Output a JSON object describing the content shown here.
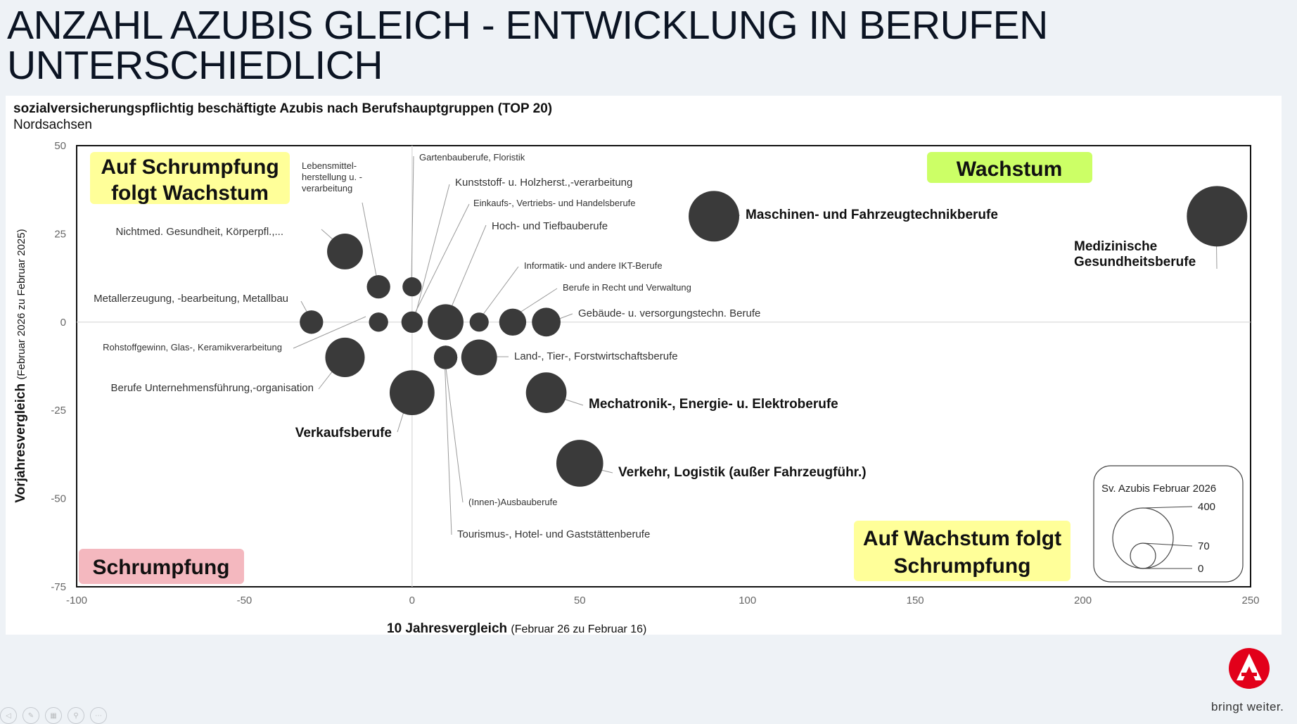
{
  "title_line1": "ANZAHL AZUBIS GLEICH - ENTWICKLUNG IN BERUFEN",
  "title_line2": "UNTERSCHIEDLICH",
  "brand": {
    "tagline": "bringt weiter.",
    "logo_color": "#e2001a"
  },
  "chart_data": {
    "type": "bubble",
    "title": "sozialversicherungspflichtig beschäftigte Azubis nach Berufshauptgruppen (TOP 20)",
    "subtitle": "Nordsachsen",
    "xlabel": "10 Jahresvergleich",
    "xlabel_note": "(Februar 26 zu Februar 16)",
    "ylabel": "Vorjahresvergleich",
    "ylabel_note": "(Februar 2026 zu Februar 2025)",
    "xlim": [
      -100,
      250
    ],
    "ylim": [
      -75,
      50
    ],
    "xticks": [
      "-100",
      "-50",
      "0",
      "50",
      "100",
      "150",
      "200",
      "250"
    ],
    "yticks": [
      "50",
      "25",
      "0",
      "-25",
      "-50",
      "-75"
    ],
    "bubble_color": "#3a3a3a",
    "quadrants": [
      {
        "label_line1": "Auf Schrumpfung",
        "label_line2": "folgt Wachstum",
        "color": "#ffff99"
      },
      {
        "label_line1": "Wachstum",
        "label_line2": "",
        "color": "#ccff66"
      },
      {
        "label_line1": "Schrumpfung",
        "label_line2": "",
        "color": "#f4b8bf"
      },
      {
        "label_line1": "Auf Wachstum folgt",
        "label_line2": "Schrumpfung",
        "color": "#ffff99"
      }
    ],
    "size_legend": {
      "title": "Sv. Azubis Februar 2026",
      "values": [
        "400",
        "70",
        "0"
      ]
    },
    "points": [
      {
        "label": "Medizinische Gesundheitsberufe",
        "x": 240,
        "y": 30,
        "size": 400
      },
      {
        "label": "Maschinen- und Fahrzeugtechnikberufe",
        "x": 90,
        "y": 30,
        "size": 280
      },
      {
        "label": "Nichtmed. Gesundheit, Körperpfl.,...",
        "x": -20,
        "y": 20,
        "size": 140
      },
      {
        "label": "Lebensmittel-herstellung u. -verarbeitung",
        "x": -10,
        "y": 10,
        "size": 60
      },
      {
        "label": "Gartenbauberufe, Floristik",
        "x": 0,
        "y": 10,
        "size": 40
      },
      {
        "label": "Kunststoff- u. Holzherst.,-verarbeitung",
        "x": 0,
        "y": 0,
        "size": 50
      },
      {
        "label": "Einkaufs-, Vertriebs- und Handelsberufe",
        "x": -10,
        "y": 0,
        "size": 40
      },
      {
        "label": "Hoch- und Tiefbauberufe",
        "x": 10,
        "y": 0,
        "size": 140
      },
      {
        "label": "Informatik- und andere IKT-Berufe",
        "x": 20,
        "y": 0,
        "size": 40
      },
      {
        "label": "Berufe in Recht und Verwaltung",
        "x": 30,
        "y": 0,
        "size": 80
      },
      {
        "label": "Gebäude- u. versorgungstechn. Berufe",
        "x": 40,
        "y": 0,
        "size": 90
      },
      {
        "label": "Metallerzeugung, -bearbeitung, Metallbau",
        "x": -30,
        "y": 0,
        "size": 60
      },
      {
        "label": "Rohstoffgewinn, Glas-, Keramikverarbeitung",
        "x": -10,
        "y": 0,
        "size": 40
      },
      {
        "label": "Berufe Unternehmensführung,-organisation",
        "x": -20,
        "y": -10,
        "size": 170
      },
      {
        "label": "Land-, Tier-, Forstwirtschaftsberufe",
        "x": 20,
        "y": -10,
        "size": 140
      },
      {
        "label": "(Innen-)Ausbauberufe",
        "x": 10,
        "y": -10,
        "size": 60
      },
      {
        "label": "Tourismus-, Hotel- und Gaststättenberufe",
        "x": 10,
        "y": -10,
        "size": 60
      },
      {
        "label": "Verkaufsberufe",
        "x": 0,
        "y": -20,
        "size": 220
      },
      {
        "label": "Mechatronik-, Energie- u. Elektroberufe",
        "x": 40,
        "y": -20,
        "size": 180
      },
      {
        "label": "Verkehr, Logistik (außer Fahrzeugführ.)",
        "x": 50,
        "y": -40,
        "size": 240
      }
    ]
  }
}
